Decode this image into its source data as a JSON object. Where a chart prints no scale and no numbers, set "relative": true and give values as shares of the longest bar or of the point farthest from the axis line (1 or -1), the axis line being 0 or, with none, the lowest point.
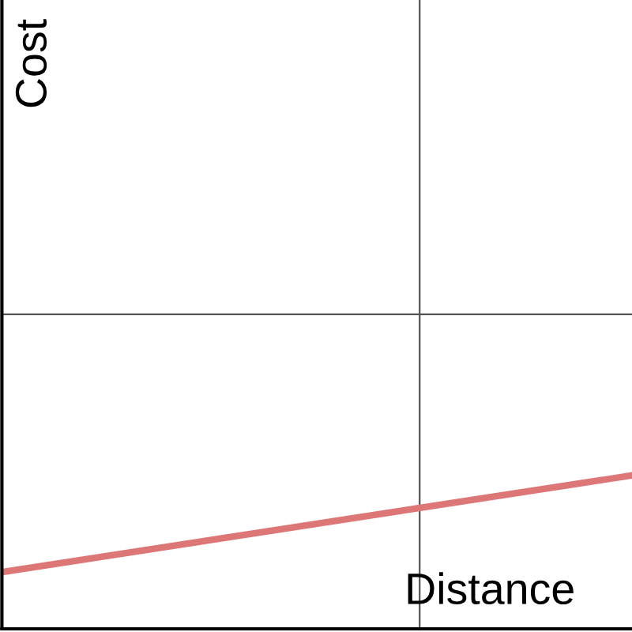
{
  "chart_data": {
    "type": "line",
    "relative": true,
    "categories": [
      null,
      null
    ],
    "annotations": [
      "Cost",
      "Distance"
    ],
    "series": [
      {
        "color": "#dd7777",
        "values": [
          0.37,
          1
        ]
      }
    ],
    "ref_lines": [
      {
        "axis": "y",
        "value": 2.05,
        "color": "#555555"
      }
    ],
    "legend": false,
    "marker": "none",
    "line_style": "solid"
  }
}
